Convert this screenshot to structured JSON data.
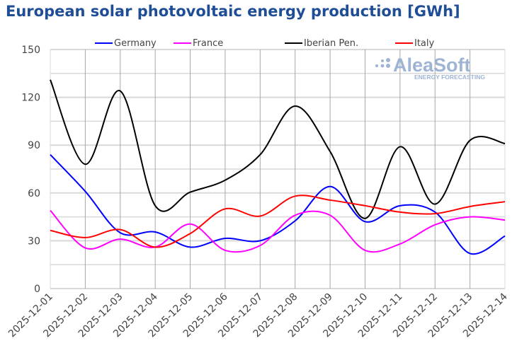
{
  "title": "European solar photovoltaic energy production [GWh]",
  "watermark": {
    "brand": "AleaSoft",
    "tagline": "ENERGY FORECASTING",
    "color": "#9fb4d4"
  },
  "chart_data": {
    "type": "line",
    "title": "European solar photovoltaic energy production [GWh]",
    "xlabel": "",
    "ylabel": "",
    "x": [
      "2025-12-01",
      "2025-12-02",
      "2025-12-03",
      "2025-12-04",
      "2025-12-05",
      "2025-12-06",
      "2025-12-07",
      "2025-12-08",
      "2025-12-09",
      "2025-12-10",
      "2025-12-11",
      "2025-12-12",
      "2025-12-13",
      "2025-12-14"
    ],
    "ylim": [
      0,
      150
    ],
    "yticks": [
      0,
      30,
      60,
      90,
      120,
      150
    ],
    "grid": true,
    "smooth": true,
    "legend_position": "top",
    "series": [
      {
        "name": "Germany",
        "color": "#0000ff",
        "values": [
          84,
          61,
          35,
          35.5,
          26,
          31.5,
          30,
          42.5,
          64,
          42,
          52,
          48,
          22,
          33
        ]
      },
      {
        "name": "France",
        "color": "#ff00ff",
        "values": [
          49,
          25.5,
          31,
          26,
          40.5,
          24,
          27,
          46,
          46,
          24,
          28,
          40,
          45,
          43
        ]
      },
      {
        "name": "Iberian Pen.",
        "color": "#000000",
        "values": [
          131,
          78,
          124,
          52,
          60.5,
          68,
          84,
          114.5,
          86,
          44,
          89,
          53,
          93,
          91
        ]
      },
      {
        "name": "Italy",
        "color": "#ff0000",
        "values": [
          36.5,
          32,
          37,
          26,
          34.5,
          50,
          45.5,
          58,
          55.5,
          52,
          48,
          47,
          51.5,
          54.5
        ]
      }
    ]
  }
}
